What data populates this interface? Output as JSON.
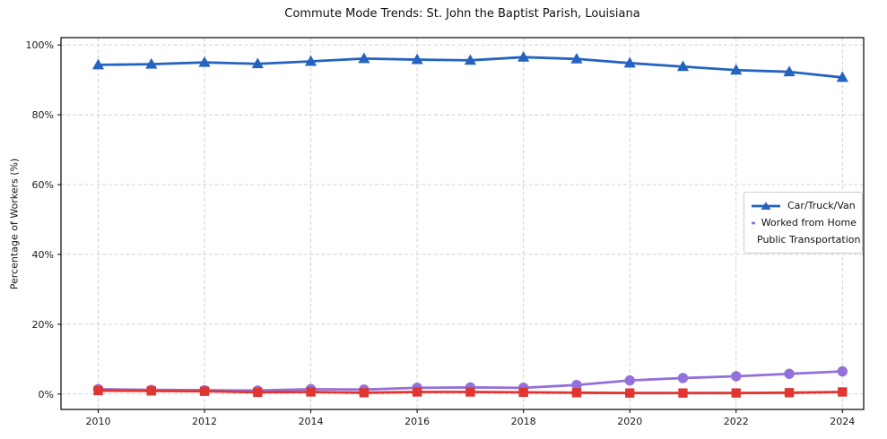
{
  "chart_data": {
    "type": "line",
    "title": "Commute Mode Trends: St. John the Baptist Parish, Louisiana",
    "xlabel": "",
    "ylabel": "Percentage of Workers (%)",
    "x": [
      2010,
      2011,
      2012,
      2013,
      2014,
      2015,
      2016,
      2017,
      2018,
      2019,
      2020,
      2021,
      2022,
      2023,
      2024
    ],
    "series": [
      {
        "name": "Car/Truck/Van",
        "color": "#2563c0",
        "marker": "triangle",
        "values": [
          94.3,
          94.5,
          95.0,
          94.6,
          95.3,
          96.1,
          95.8,
          95.6,
          96.5,
          96.0,
          94.8,
          93.8,
          92.8,
          92.3,
          90.7
        ]
      },
      {
        "name": "Worked from Home",
        "color": "#9370db",
        "marker": "circle",
        "values": [
          1.4,
          1.2,
          1.1,
          1.0,
          1.4,
          1.3,
          1.8,
          1.9,
          1.8,
          2.6,
          3.9,
          4.6,
          5.1,
          5.8,
          6.5
        ]
      },
      {
        "name": "Public Transportation",
        "color": "#e03531",
        "marker": "square",
        "values": [
          1.0,
          0.9,
          0.8,
          0.5,
          0.6,
          0.4,
          0.6,
          0.6,
          0.5,
          0.4,
          0.3,
          0.3,
          0.3,
          0.4,
          0.6
        ]
      }
    ],
    "xticks": {
      "values": [
        2010,
        2012,
        2014,
        2016,
        2018,
        2020,
        2022,
        2024
      ],
      "labels": [
        "2010",
        "2012",
        "2014",
        "2016",
        "2018",
        "2020",
        "2022",
        "2024"
      ]
    },
    "yticks": {
      "values": [
        0,
        20,
        40,
        60,
        80,
        100
      ],
      "labels": [
        "0%",
        "20%",
        "40%",
        "60%",
        "80%",
        "100%"
      ]
    },
    "xlim": [
      2009.3,
      2024.4
    ],
    "ylim": [
      -4.4,
      102.1
    ],
    "grid": true,
    "grid_style": "dashed",
    "grid_color": "#cccccc",
    "legend_position": "center-right"
  }
}
